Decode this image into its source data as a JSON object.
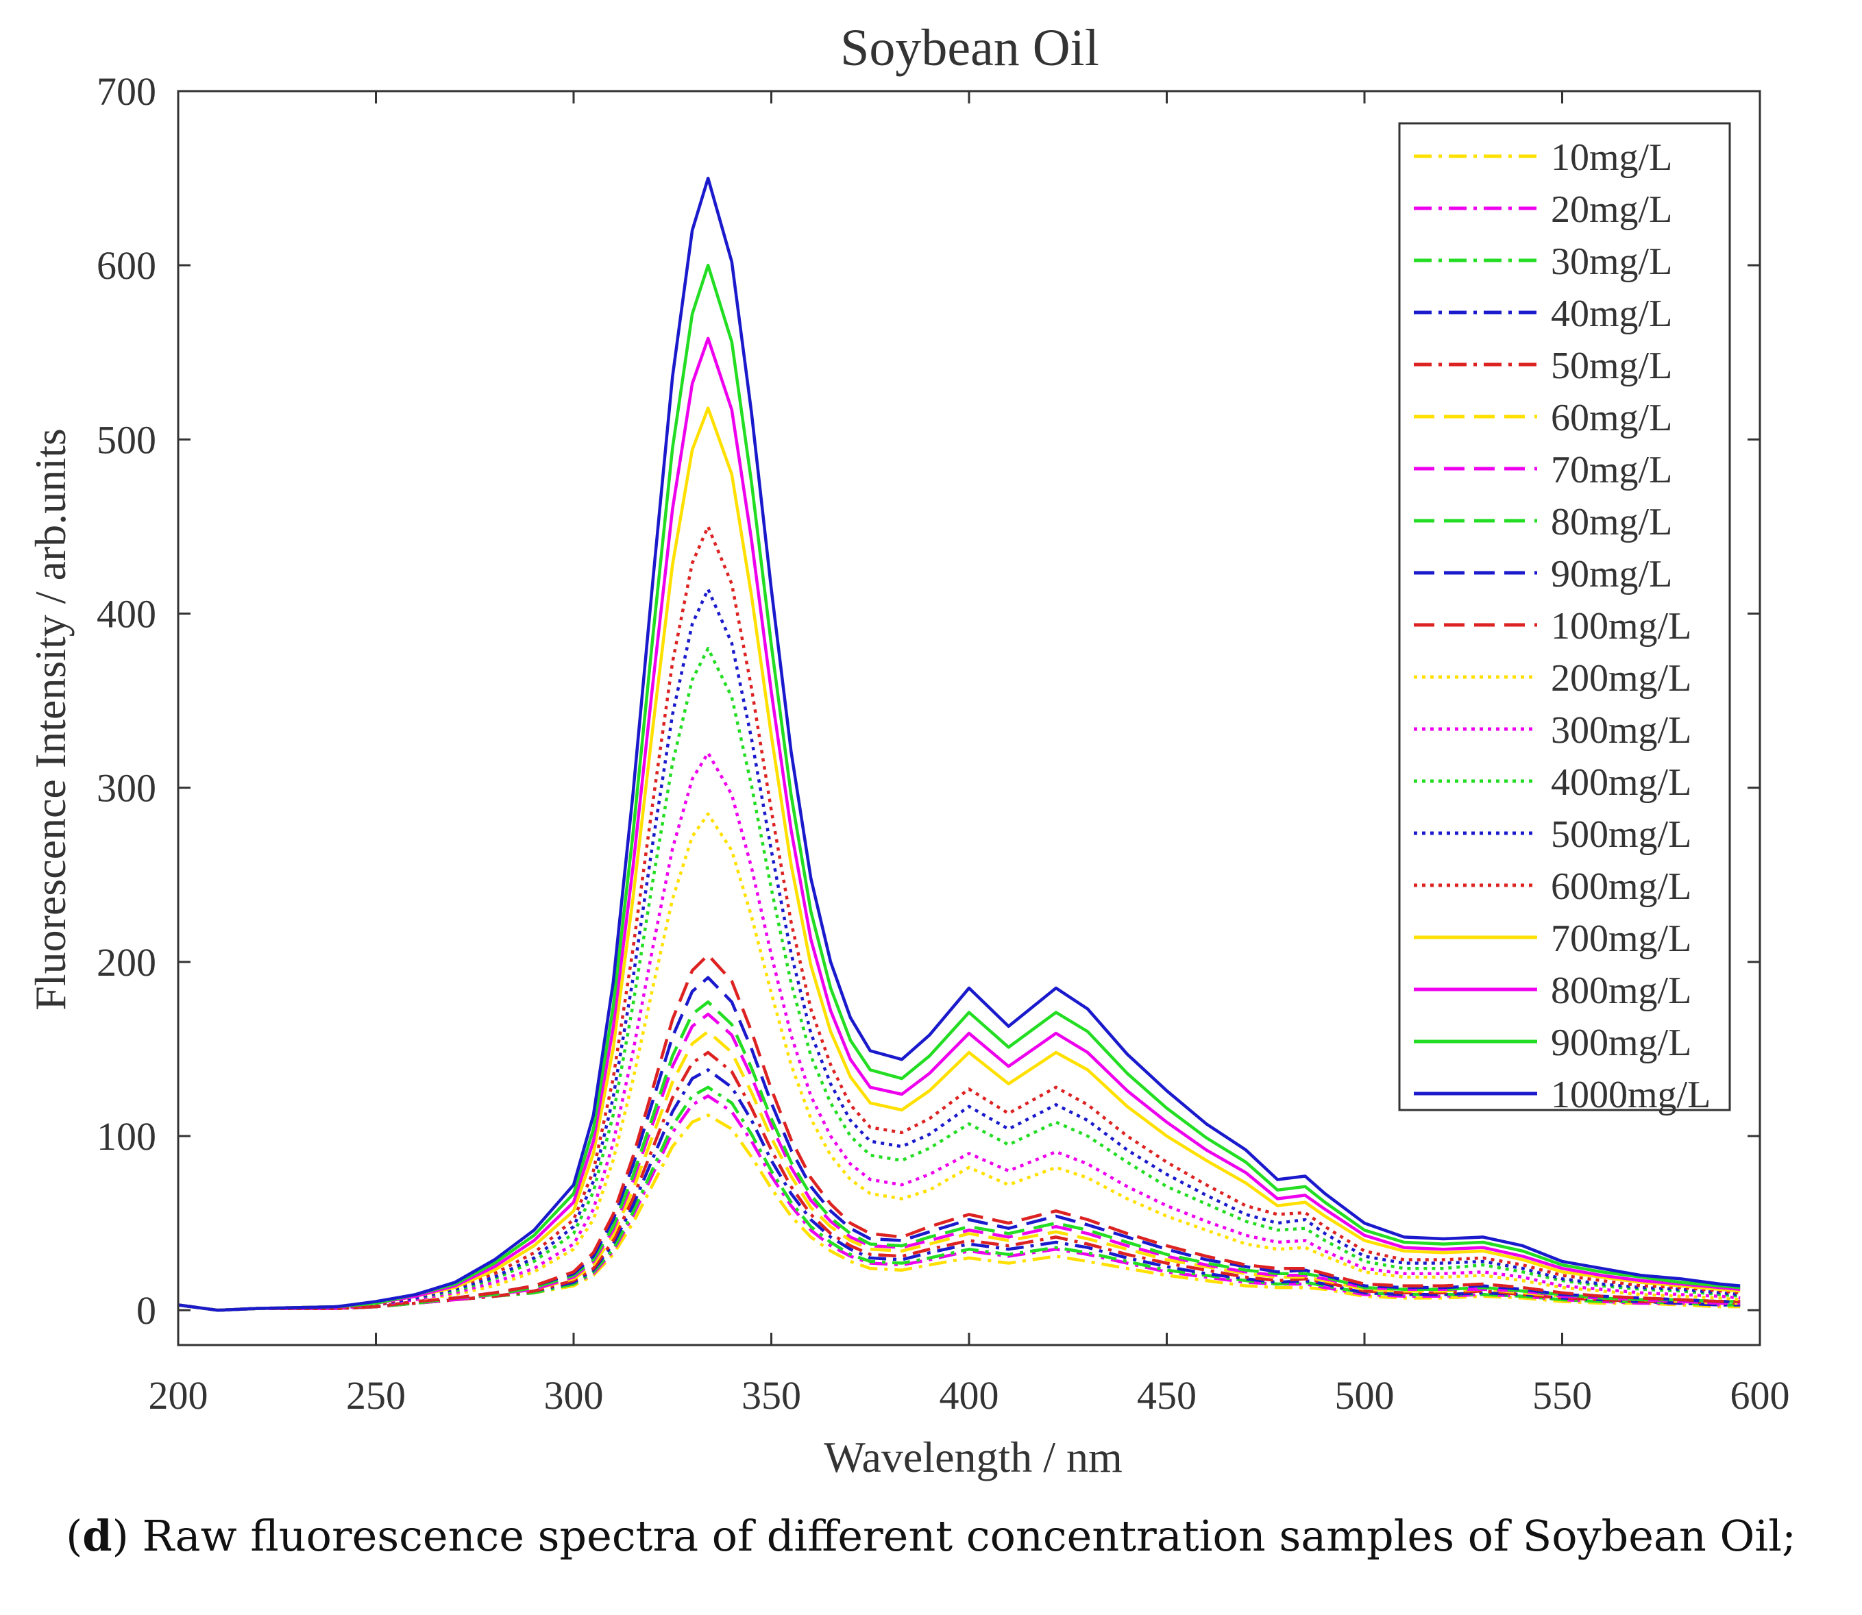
{
  "caption": {
    "label": "d",
    "text": "Raw fluorescence spectra of different concentration samples of Soybean Oil;"
  },
  "chart_data": {
    "type": "line",
    "title": "Soybean Oil",
    "xlabel": "Wavelength / nm",
    "ylabel": "Fluorescence Intensity / arb.units",
    "xlim": [
      200,
      600
    ],
    "ylim": [
      -20,
      700
    ],
    "xticks": [
      200,
      250,
      300,
      350,
      400,
      450,
      500,
      550,
      600
    ],
    "yticks": [
      0,
      100,
      200,
      300,
      400,
      500,
      600,
      700
    ],
    "grid": false,
    "legend_position": "top-right",
    "x": [
      200,
      210,
      220,
      240,
      250,
      260,
      270,
      280,
      290,
      300,
      305,
      310,
      315,
      320,
      325,
      330,
      334,
      340,
      345,
      350,
      355,
      360,
      365,
      370,
      375,
      383,
      390,
      400,
      410,
      422,
      430,
      440,
      450,
      460,
      470,
      478,
      485,
      490,
      500,
      510,
      520,
      530,
      540,
      550,
      560,
      570,
      580,
      590,
      595
    ],
    "series": [
      {
        "name": "10mg/L",
        "color": "#ffe000",
        "dash": "dashdot",
        "values": [
          3,
          0,
          1,
          1,
          2,
          4,
          6,
          8,
          10,
          14,
          20,
          32,
          50,
          72,
          94,
          108,
          112,
          104,
          88,
          70,
          54,
          42,
          34,
          28,
          24,
          23,
          26,
          30,
          27,
          31,
          28,
          24,
          20,
          17,
          14,
          13,
          13,
          12,
          8,
          7,
          7,
          8,
          7,
          5,
          4,
          4,
          3,
          2,
          2
        ]
      },
      {
        "name": "20mg/L",
        "color": "#ee00ee",
        "dash": "dashdot",
        "values": [
          3,
          0,
          1,
          1,
          2,
          4,
          6,
          8,
          10,
          15,
          21,
          34,
          54,
          78,
          102,
          118,
          123,
          114,
          97,
          77,
          60,
          46,
          37,
          31,
          27,
          26,
          29,
          34,
          31,
          35,
          32,
          27,
          22,
          19,
          16,
          15,
          15,
          13,
          9,
          8,
          8,
          9,
          8,
          6,
          5,
          4,
          4,
          3,
          3
        ]
      },
      {
        "name": "30mg/L",
        "color": "#22dd22",
        "dash": "dashdot",
        "values": [
          3,
          0,
          1,
          1,
          2,
          4,
          6,
          8,
          10,
          15,
          22,
          35,
          56,
          81,
          106,
          123,
          128,
          119,
          101,
          80,
          62,
          48,
          39,
          32,
          28,
          27,
          30,
          35,
          32,
          36,
          33,
          28,
          23,
          20,
          17,
          15,
          16,
          14,
          10,
          9,
          9,
          9,
          8,
          6,
          5,
          5,
          4,
          3,
          3
        ]
      },
      {
        "name": "40mg/L",
        "color": "#1a1acc",
        "dash": "dashdot",
        "values": [
          3,
          0,
          1,
          1,
          2,
          4,
          6,
          8,
          11,
          16,
          23,
          38,
          60,
          87,
          114,
          133,
          138,
          128,
          109,
          86,
          67,
          52,
          42,
          35,
          30,
          29,
          33,
          38,
          35,
          39,
          36,
          30,
          25,
          21,
          18,
          16,
          17,
          15,
          10,
          9,
          9,
          10,
          9,
          7,
          6,
          5,
          4,
          3,
          3
        ]
      },
      {
        "name": "50mg/L",
        "color": "#dd2222",
        "dash": "dashdot",
        "values": [
          3,
          0,
          1,
          1,
          2,
          4,
          6,
          8,
          11,
          17,
          24,
          40,
          64,
          93,
          122,
          142,
          148,
          137,
          116,
          92,
          71,
          55,
          44,
          37,
          32,
          31,
          35,
          40,
          37,
          42,
          38,
          32,
          27,
          23,
          19,
          17,
          18,
          16,
          11,
          10,
          10,
          11,
          9,
          7,
          6,
          5,
          5,
          4,
          4
        ]
      },
      {
        "name": "60mg/L",
        "color": "#ffe000",
        "dash": "dash",
        "values": [
          3,
          0,
          1,
          1,
          2,
          4,
          6,
          9,
          12,
          18,
          26,
          43,
          69,
          100,
          131,
          153,
          160,
          148,
          125,
          99,
          77,
          59,
          48,
          40,
          35,
          34,
          38,
          44,
          40,
          45,
          41,
          35,
          29,
          25,
          21,
          19,
          19,
          17,
          12,
          11,
          11,
          12,
          10,
          8,
          7,
          6,
          5,
          4,
          4
        ]
      },
      {
        "name": "70mg/L",
        "color": "#ee00ee",
        "dash": "dash",
        "values": [
          3,
          0,
          1,
          1,
          2,
          4,
          6,
          9,
          12,
          19,
          28,
          46,
          74,
          107,
          140,
          163,
          170,
          158,
          134,
          106,
          82,
          63,
          51,
          42,
          37,
          36,
          40,
          46,
          42,
          48,
          44,
          37,
          31,
          26,
          22,
          20,
          20,
          18,
          13,
          12,
          12,
          12,
          11,
          8,
          7,
          6,
          5,
          4,
          4
        ]
      },
      {
        "name": "80mg/L",
        "color": "#22dd22",
        "dash": "dash",
        "values": [
          3,
          0,
          1,
          1,
          2,
          4,
          7,
          9,
          13,
          20,
          29,
          48,
          77,
          111,
          146,
          170,
          177,
          164,
          139,
          110,
          85,
          66,
          53,
          44,
          38,
          37,
          42,
          48,
          44,
          50,
          46,
          39,
          32,
          27,
          23,
          21,
          21,
          19,
          13,
          12,
          12,
          13,
          11,
          9,
          7,
          6,
          6,
          5,
          5
        ]
      },
      {
        "name": "90mg/L",
        "color": "#1a1acc",
        "dash": "dash",
        "values": [
          3,
          0,
          1,
          1,
          2,
          5,
          7,
          10,
          14,
          21,
          31,
          52,
          83,
          120,
          157,
          183,
          191,
          177,
          150,
          119,
          92,
          71,
          57,
          47,
          41,
          40,
          45,
          52,
          47,
          54,
          49,
          42,
          35,
          29,
          25,
          22,
          23,
          20,
          14,
          13,
          13,
          14,
          12,
          9,
          8,
          7,
          6,
          5,
          5
        ]
      },
      {
        "name": "100mg/L",
        "color": "#dd2222",
        "dash": "dash",
        "values": [
          3,
          0,
          1,
          1,
          2,
          5,
          7,
          10,
          14,
          22,
          33,
          55,
          88,
          127,
          167,
          195,
          204,
          189,
          160,
          127,
          98,
          76,
          61,
          50,
          44,
          42,
          48,
          55,
          50,
          57,
          52,
          44,
          37,
          31,
          26,
          24,
          24,
          21,
          15,
          14,
          14,
          15,
          13,
          10,
          8,
          7,
          6,
          5,
          5
        ]
      },
      {
        "name": "200mg/L",
        "color": "#ffe000",
        "dash": "dot",
        "values": [
          3,
          0,
          1,
          1,
          3,
          6,
          9,
          14,
          22,
          35,
          52,
          86,
          132,
          185,
          236,
          272,
          285,
          264,
          226,
          182,
          141,
          110,
          89,
          75,
          67,
          64,
          69,
          82,
          72,
          82,
          76,
          64,
          54,
          46,
          38,
          35,
          36,
          31,
          22,
          19,
          19,
          20,
          17,
          13,
          11,
          9,
          8,
          7,
          6
        ]
      },
      {
        "name": "300mg/L",
        "color": "#ee00ee",
        "dash": "dot",
        "values": [
          3,
          0,
          1,
          1,
          3,
          6,
          10,
          16,
          24,
          38,
          58,
          96,
          148,
          208,
          265,
          305,
          320,
          296,
          254,
          204,
          158,
          123,
          100,
          84,
          75,
          72,
          78,
          90,
          80,
          91,
          84,
          71,
          60,
          51,
          43,
          39,
          40,
          34,
          24,
          21,
          21,
          22,
          19,
          14,
          12,
          10,
          9,
          8,
          7
        ]
      },
      {
        "name": "400mg/L",
        "color": "#22dd22",
        "dash": "dot",
        "values": [
          3,
          0,
          1,
          2,
          3,
          7,
          11,
          18,
          28,
          44,
          68,
          112,
          175,
          246,
          314,
          362,
          380,
          352,
          301,
          242,
          188,
          146,
          119,
          100,
          89,
          86,
          93,
          107,
          95,
          108,
          100,
          85,
          71,
          61,
          51,
          46,
          47,
          40,
          28,
          24,
          24,
          26,
          22,
          17,
          14,
          12,
          11,
          9,
          8
        ]
      },
      {
        "name": "500mg/L",
        "color": "#1a1acc",
        "dash": "dot",
        "values": [
          3,
          0,
          1,
          2,
          3,
          7,
          12,
          19,
          30,
          48,
          74,
          122,
          190,
          268,
          342,
          394,
          414,
          383,
          328,
          264,
          205,
          159,
          130,
          109,
          97,
          94,
          101,
          117,
          104,
          118,
          109,
          92,
          78,
          66,
          55,
          50,
          52,
          44,
          31,
          27,
          27,
          28,
          24,
          18,
          15,
          13,
          12,
          10,
          9
        ]
      },
      {
        "name": "600mg/L",
        "color": "#dd2222",
        "dash": "dot",
        "values": [
          3,
          0,
          1,
          2,
          3,
          8,
          13,
          21,
          33,
          52,
          80,
          133,
          207,
          291,
          372,
          429,
          450,
          417,
          357,
          287,
          223,
          173,
          141,
          118,
          105,
          102,
          110,
          127,
          113,
          128,
          118,
          100,
          85,
          72,
          60,
          55,
          56,
          48,
          34,
          29,
          29,
          30,
          26,
          20,
          17,
          14,
          13,
          11,
          10
        ]
      },
      {
        "name": "700mg/L",
        "color": "#ffe000",
        "dash": "solid",
        "values": [
          3,
          0,
          1,
          2,
          4,
          8,
          13,
          23,
          37,
          57,
          90,
          150,
          236,
          334,
          428,
          494,
          518,
          480,
          410,
          330,
          256,
          198,
          160,
          134,
          119,
          115,
          126,
          148,
          130,
          148,
          138,
          117,
          100,
          86,
          73,
          60,
          62,
          54,
          40,
          34,
          33,
          34,
          29,
          22,
          19,
          16,
          14,
          12,
          11
        ]
      },
      {
        "name": "800mg/L",
        "color": "#ee00ee",
        "dash": "solid",
        "values": [
          3,
          0,
          1,
          2,
          4,
          8,
          14,
          25,
          40,
          62,
          97,
          162,
          254,
          359,
          460,
          532,
          558,
          517,
          442,
          355,
          276,
          213,
          172,
          144,
          128,
          124,
          136,
          159,
          140,
          159,
          148,
          126,
          108,
          92,
          79,
          64,
          66,
          58,
          43,
          36,
          35,
          36,
          31,
          24,
          20,
          17,
          15,
          13,
          12
        ]
      },
      {
        "name": "900mg/L",
        "color": "#22dd22",
        "dash": "solid",
        "values": [
          3,
          0,
          1,
          2,
          4,
          9,
          15,
          27,
          43,
          67,
          104,
          174,
          273,
          386,
          495,
          572,
          600,
          556,
          475,
          382,
          296,
          229,
          185,
          155,
          138,
          133,
          146,
          171,
          151,
          171,
          160,
          136,
          116,
          99,
          85,
          69,
          71,
          62,
          46,
          39,
          38,
          39,
          34,
          26,
          22,
          19,
          16,
          14,
          13
        ]
      },
      {
        "name": "1000mg/L",
        "color": "#1a1acc",
        "dash": "solid",
        "values": [
          3,
          0,
          1,
          2,
          5,
          9,
          16,
          29,
          46,
          72,
          112,
          188,
          296,
          418,
          536,
          620,
          650,
          602,
          515,
          414,
          321,
          248,
          200,
          168,
          149,
          144,
          158,
          185,
          163,
          185,
          173,
          147,
          126,
          107,
          92,
          75,
          77,
          67,
          50,
          42,
          41,
          42,
          37,
          28,
          24,
          20,
          18,
          15,
          14
        ]
      }
    ]
  }
}
